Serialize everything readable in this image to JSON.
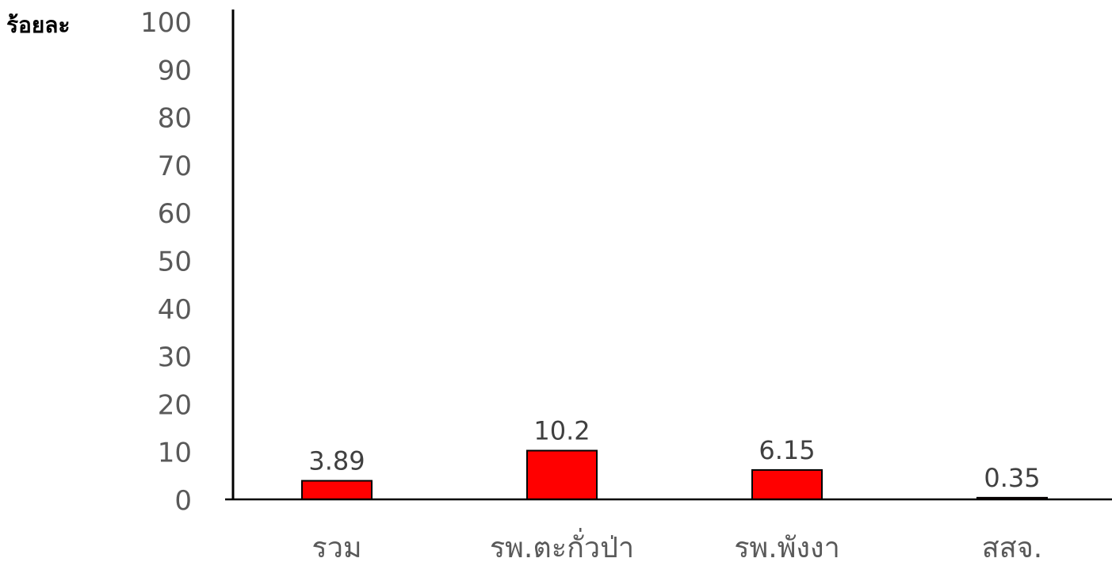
{
  "chart_data": {
    "type": "bar",
    "ylabel": "ร้อยละ",
    "xlabel": "",
    "categories": [
      "รวม",
      "รพ.ตะกั่วป่า",
      "รพ.พังงา",
      "สสจ."
    ],
    "values": [
      3.89,
      10.2,
      6.15,
      0.35
    ],
    "data_labels": [
      "3.89",
      "10.2",
      "6.15",
      "0.35"
    ],
    "ylim": [
      0,
      100
    ],
    "yticks": [
      "0",
      "10",
      "20",
      "30",
      "40",
      "50",
      "60",
      "70",
      "80",
      "90",
      "100"
    ],
    "grid": false,
    "bar_color": "#ff0000",
    "bar_edge_color": "#000000",
    "tick_label_color": "#595959"
  }
}
